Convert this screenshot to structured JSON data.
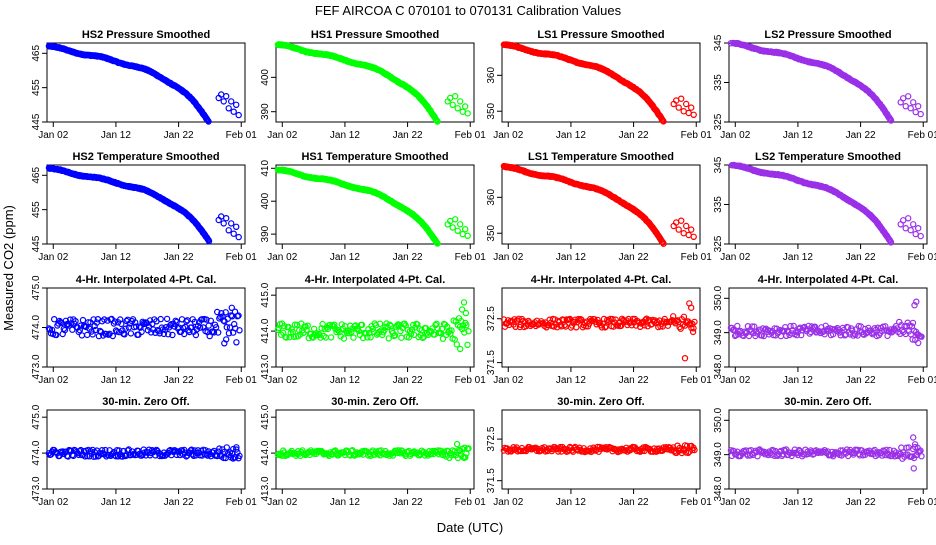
{
  "figure": {
    "title": "FEF   AIRCOA C   070101 to 070131   Calibration Values",
    "xlabel": "Date (UTC)",
    "ylabel": "Measured CO2 (ppm)",
    "x_ticks": [
      {
        "day": 1,
        "label": "Jan 02"
      },
      {
        "day": 11,
        "label": "Jan 12"
      },
      {
        "day": 21,
        "label": "Jan 22"
      },
      {
        "day": 31,
        "label": "Feb 01"
      }
    ]
  },
  "chart_data": [
    {
      "type": "scatter",
      "panel": "HS2 Pressure Smoothed",
      "row": 0,
      "col": 0,
      "color": "#0000ff",
      "ylim": [
        445,
        468
      ],
      "yticks": [
        {
          "v": 445,
          "label": "445"
        },
        {
          "v": 455,
          "label": "455"
        },
        {
          "v": 465,
          "label": "465"
        }
      ],
      "shape": "decline",
      "start": 467,
      "flat": 5,
      "end": 445,
      "tail": [
        [
          27.4,
          452
        ],
        [
          27.8,
          453
        ],
        [
          28.2,
          451
        ],
        [
          28.6,
          452.5
        ],
        [
          29,
          449
        ],
        [
          29.4,
          451
        ],
        [
          29.8,
          448
        ],
        [
          30.2,
          450
        ],
        [
          30.6,
          447
        ]
      ]
    },
    {
      "type": "scatter",
      "panel": "HS1 Pressure Smoothed",
      "row": 0,
      "col": 1,
      "color": "#00ff00",
      "ylim": [
        387,
        410
      ],
      "yticks": [
        {
          "v": 390,
          "label": "390"
        },
        {
          "v": 400,
          "label": "400"
        }
      ],
      "shape": "decline",
      "start": 409.5,
      "flat": 5,
      "end": 387,
      "tail": [
        [
          27.4,
          393
        ],
        [
          27.8,
          394
        ],
        [
          28.2,
          392
        ],
        [
          28.6,
          394.5
        ],
        [
          29,
          391
        ],
        [
          29.4,
          393
        ],
        [
          29.8,
          390
        ],
        [
          30.2,
          391.5
        ],
        [
          30.6,
          389.5
        ]
      ]
    },
    {
      "type": "scatter",
      "panel": "LS1 Pressure Smoothed",
      "row": 0,
      "col": 2,
      "color": "#ff0000",
      "ylim": [
        347,
        369
      ],
      "yticks": [
        {
          "v": 350,
          "label": "350"
        },
        {
          "v": 360,
          "label": "360"
        }
      ],
      "shape": "decline",
      "start": 368.5,
      "flat": 5,
      "end": 347,
      "tail": [
        [
          27.4,
          352
        ],
        [
          27.8,
          353
        ],
        [
          28.2,
          351
        ],
        [
          28.6,
          353.5
        ],
        [
          29,
          350
        ],
        [
          29.4,
          352
        ],
        [
          29.8,
          349.5
        ],
        [
          30.2,
          351
        ],
        [
          30.6,
          349
        ]
      ]
    },
    {
      "type": "scatter",
      "panel": "LS2 Pressure Smoothed",
      "row": 0,
      "col": 3,
      "color": "#9a30e8",
      "ylim": [
        325,
        345
      ],
      "yticks": [
        {
          "v": 325,
          "label": "325"
        },
        {
          "v": 335,
          "label": "335"
        },
        {
          "v": 345,
          "label": "345"
        }
      ],
      "shape": "decline",
      "start": 345,
      "flat": 5,
      "end": 325.5,
      "tail": [
        [
          27.4,
          330
        ],
        [
          27.8,
          331
        ],
        [
          28.2,
          329
        ],
        [
          28.6,
          331.5
        ],
        [
          29,
          328.5
        ],
        [
          29.4,
          330
        ],
        [
          29.8,
          327.5
        ],
        [
          30.2,
          329
        ],
        [
          30.6,
          327
        ]
      ]
    },
    {
      "type": "scatter",
      "panel": "HS2 Temperature Smoothed",
      "row": 1,
      "col": 0,
      "color": "#0000ff",
      "ylim": [
        445,
        468
      ],
      "yticks": [
        {
          "v": 445,
          "label": "445"
        },
        {
          "v": 455,
          "label": "455"
        },
        {
          "v": 465,
          "label": "465"
        }
      ],
      "shape": "decline",
      "start": 467,
      "flat": 5,
      "end": 446,
      "tail": [
        [
          27.4,
          452
        ],
        [
          27.8,
          453
        ],
        [
          28.2,
          451
        ],
        [
          28.6,
          452.5
        ],
        [
          29,
          449
        ],
        [
          29.4,
          451
        ],
        [
          29.8,
          448
        ],
        [
          30.2,
          450
        ],
        [
          30.6,
          447
        ]
      ]
    },
    {
      "type": "scatter",
      "panel": "HS1 Temperature Smoothed",
      "row": 1,
      "col": 1,
      "color": "#00ff00",
      "ylim": [
        387,
        411
      ],
      "yticks": [
        {
          "v": 390,
          "label": "390"
        },
        {
          "v": 400,
          "label": "400"
        },
        {
          "v": 410,
          "label": "410"
        }
      ],
      "shape": "decline",
      "start": 409.5,
      "flat": 5,
      "end": 387,
      "tail": [
        [
          27.4,
          393
        ],
        [
          27.8,
          394
        ],
        [
          28.2,
          392
        ],
        [
          28.6,
          394.5
        ],
        [
          29,
          391
        ],
        [
          29.4,
          393
        ],
        [
          29.8,
          390
        ],
        [
          30.2,
          391.5
        ],
        [
          30.6,
          389.5
        ]
      ]
    },
    {
      "type": "scatter",
      "panel": "LS1 Temperature Smoothed",
      "row": 1,
      "col": 2,
      "color": "#ff0000",
      "ylim": [
        347,
        369
      ],
      "yticks": [
        {
          "v": 350,
          "label": "350"
        },
        {
          "v": 360,
          "label": "360"
        }
      ],
      "shape": "decline",
      "start": 368.5,
      "flat": 5,
      "end": 347,
      "tail": [
        [
          27.4,
          352
        ],
        [
          27.8,
          353
        ],
        [
          28.2,
          351
        ],
        [
          28.6,
          353.5
        ],
        [
          29,
          350
        ],
        [
          29.4,
          352
        ],
        [
          29.8,
          349.5
        ],
        [
          30.2,
          351
        ],
        [
          30.6,
          349
        ]
      ]
    },
    {
      "type": "scatter",
      "panel": "LS2 Temperature Smoothed",
      "row": 1,
      "col": 3,
      "color": "#9a30e8",
      "ylim": [
        325,
        345
      ],
      "yticks": [
        {
          "v": 325,
          "label": "325"
        },
        {
          "v": 335,
          "label": "335"
        },
        {
          "v": 345,
          "label": "345"
        }
      ],
      "shape": "decline",
      "start": 345,
      "flat": 5,
      "end": 325.5,
      "tail": [
        [
          27.4,
          330
        ],
        [
          27.8,
          331
        ],
        [
          28.2,
          329
        ],
        [
          28.6,
          331.5
        ],
        [
          29,
          328.5
        ],
        [
          29.4,
          330
        ],
        [
          29.8,
          327.5
        ],
        [
          30.2,
          329
        ],
        [
          30.6,
          327
        ]
      ]
    },
    {
      "type": "scatter",
      "panel": "4-Hr. Interpolated 4-Pt. Cal.",
      "row": 2,
      "col": 0,
      "color": "#0000ff",
      "ylim": [
        473,
        475
      ],
      "yticks": [
        {
          "v": 473,
          "label": "473.0"
        },
        {
          "v": 474,
          "label": "474.0"
        },
        {
          "v": 475,
          "label": "475.0"
        }
      ],
      "shape": "noise",
      "center": 474,
      "spread": 0.22,
      "outliers": [
        [
          28.3,
          473.6
        ],
        [
          28.6,
          473.7
        ],
        [
          29.5,
          474.5
        ],
        [
          30,
          474.4
        ]
      ]
    },
    {
      "type": "scatter",
      "panel": "4-Hr. Interpolated 4-Pt. Cal.",
      "row": 2,
      "col": 1,
      "color": "#00ff00",
      "ylim": [
        413,
        415.2
      ],
      "yticks": [
        {
          "v": 413,
          "label": "413.0"
        },
        {
          "v": 414,
          "label": "414.0"
        },
        {
          "v": 415,
          "label": "415.0"
        }
      ],
      "shape": "noise",
      "center": 414,
      "spread": 0.22,
      "outliers": [
        [
          29.4,
          413.5
        ],
        [
          30,
          414.8
        ],
        [
          30.3,
          414.5
        ],
        [
          29.7,
          414.6
        ]
      ]
    },
    {
      "type": "scatter",
      "panel": "4-Hr. Interpolated 4-Pt. Cal.",
      "row": 2,
      "col": 2,
      "color": "#ff0000",
      "ylim": [
        371.4,
        373.2
      ],
      "yticks": [
        {
          "v": 371.5,
          "label": "371.5"
        },
        {
          "v": 372.5,
          "label": "372.5"
        }
      ],
      "shape": "noise",
      "center": 372.4,
      "spread": 0.1,
      "outliers": [
        [
          29.2,
          371.6
        ],
        [
          29.9,
          372.85
        ],
        [
          30.2,
          372.75
        ],
        [
          30.5,
          372.2
        ]
      ]
    },
    {
      "type": "scatter",
      "panel": "4-Hr. Interpolated 4-Pt. Cal.",
      "row": 2,
      "col": 3,
      "color": "#9a30e8",
      "ylim": [
        348,
        350.3
      ],
      "yticks": [
        {
          "v": 348,
          "label": "348.0"
        },
        {
          "v": 349,
          "label": "349.0"
        },
        {
          "v": 350,
          "label": "350.0"
        }
      ],
      "shape": "noise",
      "center": 349.05,
      "spread": 0.15,
      "outliers": [
        [
          29.6,
          349.8
        ],
        [
          29.9,
          349.9
        ],
        [
          30.2,
          348.7
        ],
        [
          29.3,
          348.8
        ]
      ]
    },
    {
      "type": "scatter",
      "panel": "30-min. Zero Off.",
      "row": 3,
      "col": 0,
      "color": "#0000ff",
      "ylim": [
        473,
        475.2
      ],
      "yticks": [
        {
          "v": 473,
          "label": "473.0"
        },
        {
          "v": 474,
          "label": "474.0"
        },
        {
          "v": 475,
          "label": "475.0"
        }
      ],
      "shape": "noise",
      "center": 474,
      "spread": 0.1,
      "outliers": [
        [
          29.7,
          473.85
        ],
        [
          30.2,
          474.1
        ]
      ]
    },
    {
      "type": "scatter",
      "panel": "30-min. Zero Off.",
      "row": 3,
      "col": 1,
      "color": "#00ff00",
      "ylim": [
        413,
        415.2
      ],
      "yticks": [
        {
          "v": 413,
          "label": "413.0"
        },
        {
          "v": 414,
          "label": "414.0"
        },
        {
          "v": 415,
          "label": "415.0"
        }
      ],
      "shape": "noise",
      "center": 414,
      "spread": 0.08,
      "outliers": [
        [
          28.9,
          414.25
        ],
        [
          30.1,
          414.15
        ]
      ]
    },
    {
      "type": "scatter",
      "panel": "30-min. Zero Off.",
      "row": 3,
      "col": 2,
      "color": "#ff0000",
      "ylim": [
        371.3,
        373.2
      ],
      "yticks": [
        {
          "v": 371.5,
          "label": "371.5"
        },
        {
          "v": 372.5,
          "label": "372.5"
        }
      ],
      "shape": "noise",
      "center": 372.25,
      "spread": 0.06,
      "outliers": []
    },
    {
      "type": "scatter",
      "panel": "30-min. Zero Off.",
      "row": 3,
      "col": 3,
      "color": "#9a30e8",
      "ylim": [
        348,
        350.3
      ],
      "yticks": [
        {
          "v": 348,
          "label": "348.0"
        },
        {
          "v": 349,
          "label": "349.0"
        },
        {
          "v": 350,
          "label": "350.0"
        }
      ],
      "shape": "noise",
      "center": 349.05,
      "spread": 0.1,
      "outliers": [
        [
          29.4,
          349.5
        ],
        [
          29.7,
          349.3
        ],
        [
          29.5,
          348.6
        ],
        [
          30.1,
          349.2
        ]
      ]
    }
  ]
}
